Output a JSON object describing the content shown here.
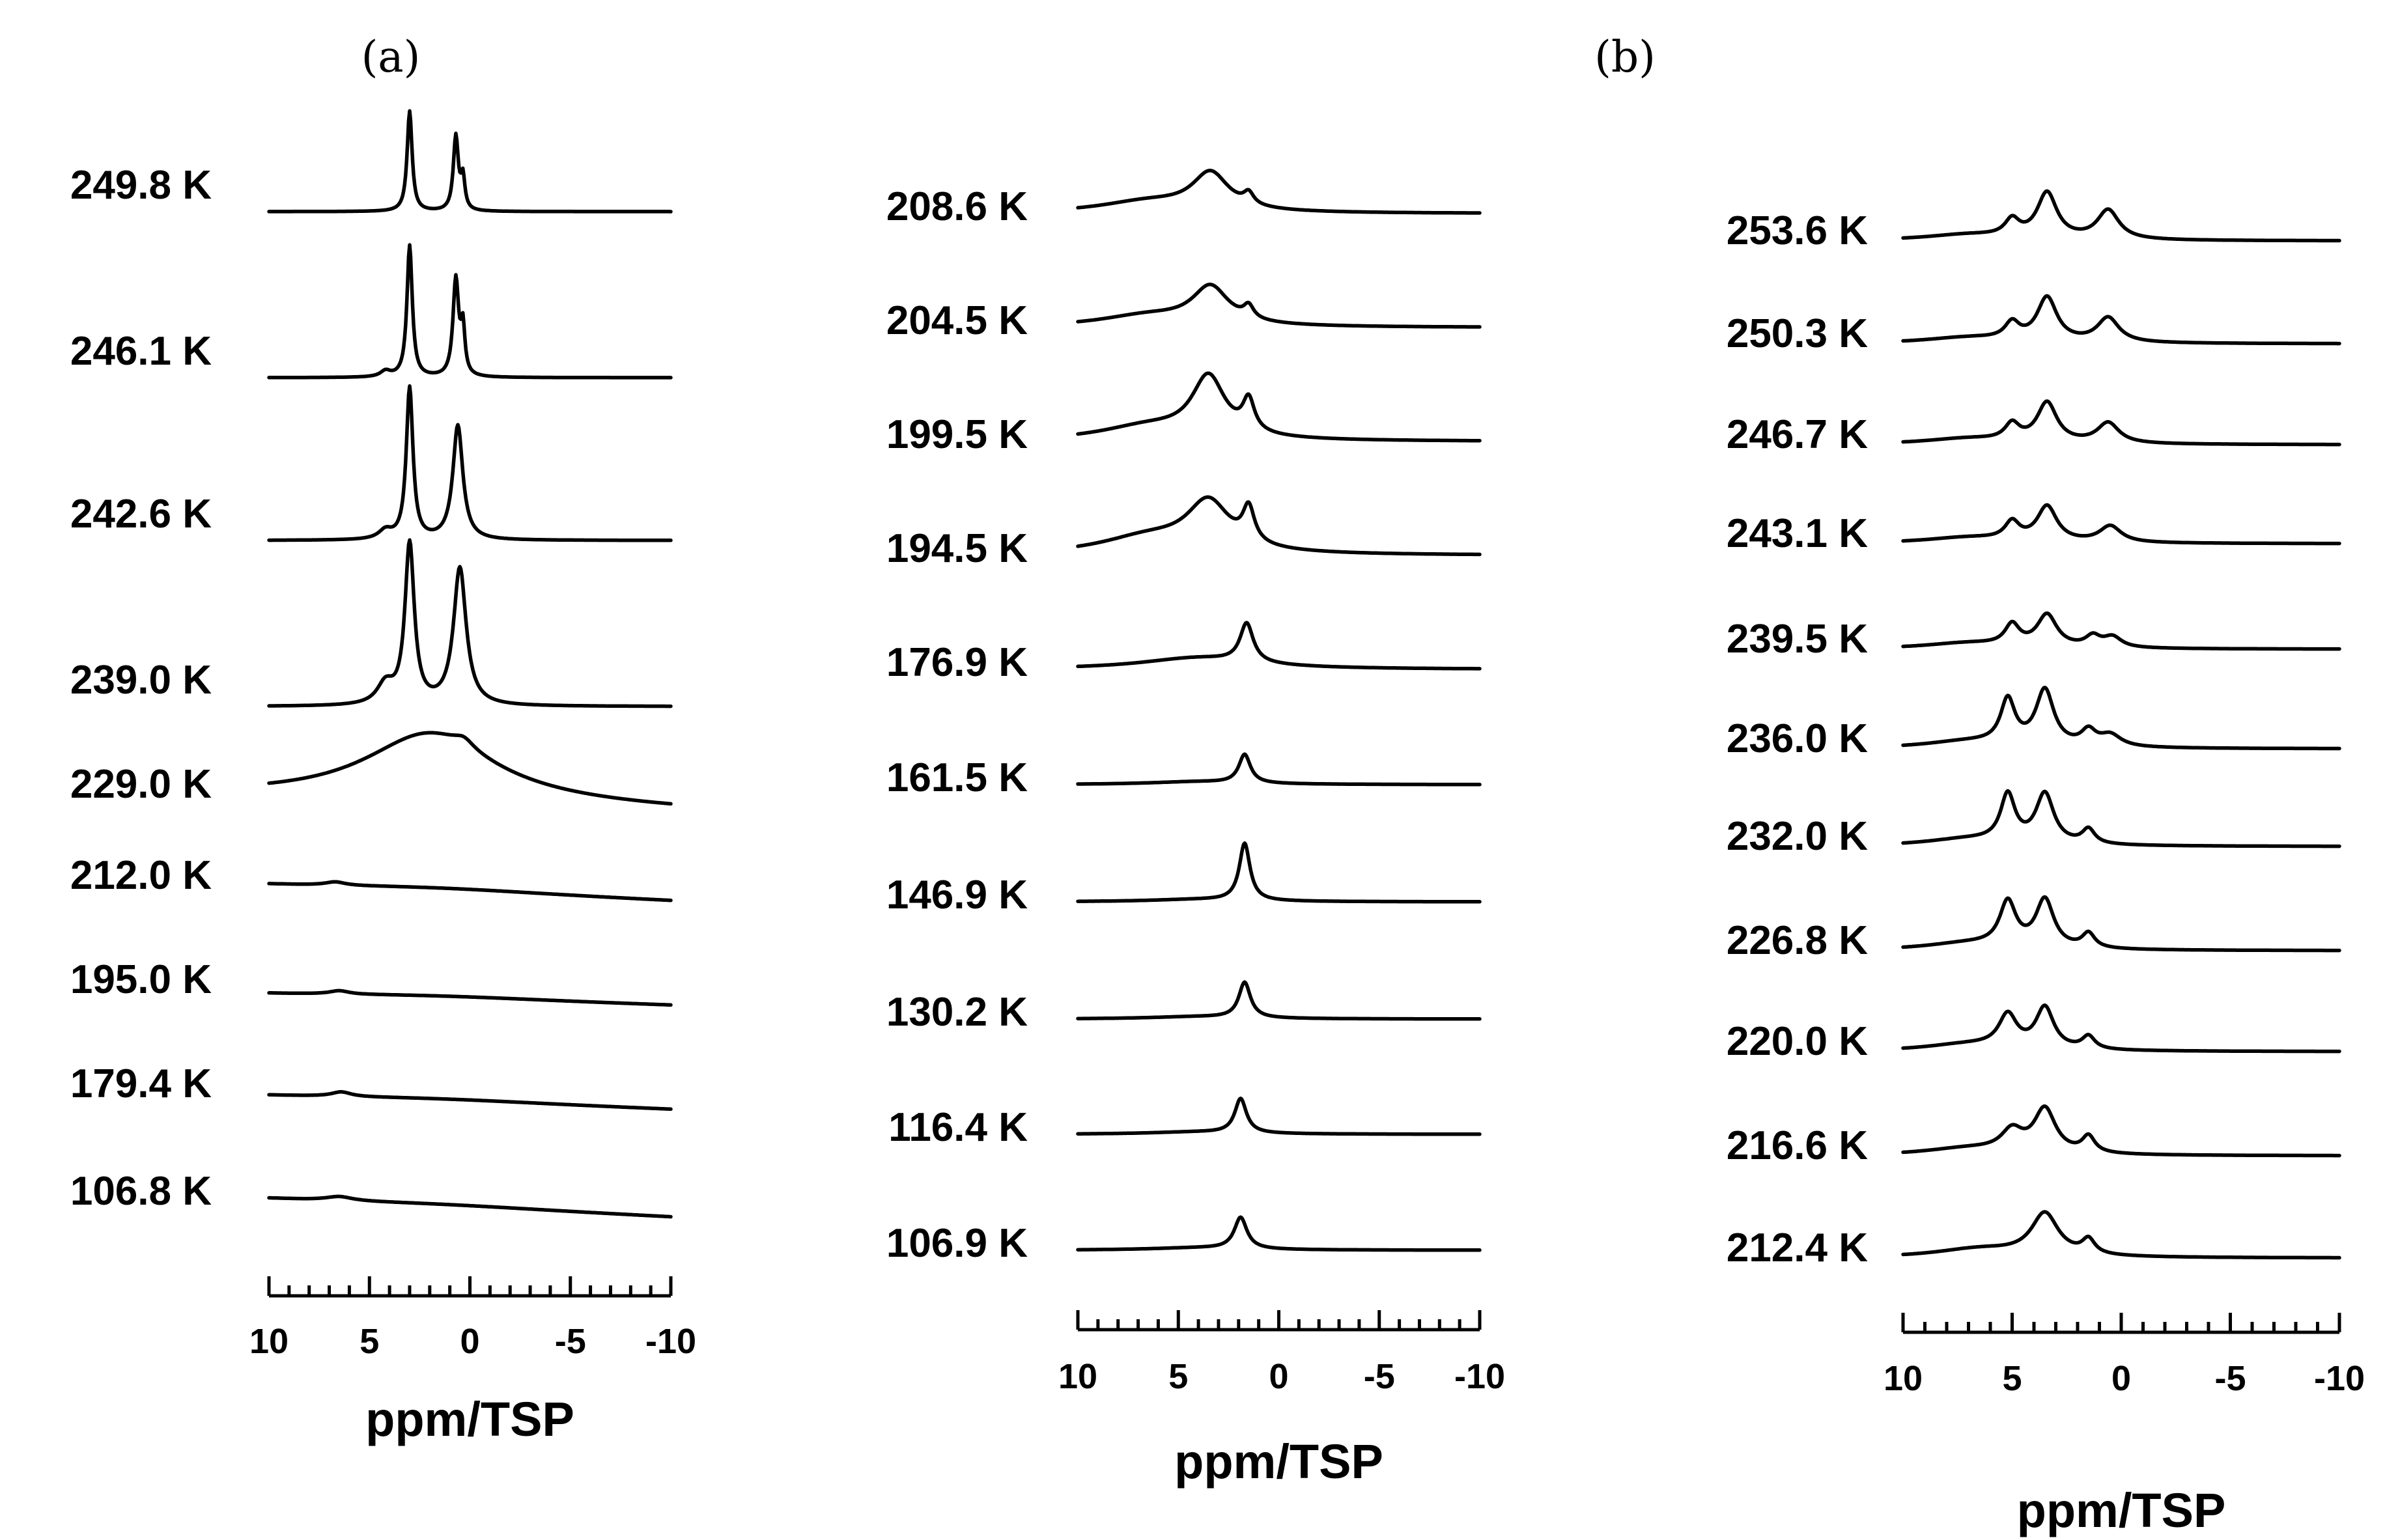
{
  "chart_data": [
    {
      "type": "line",
      "panel_label": "(a)",
      "title": "",
      "xlabel": "ppm/TSP",
      "ylabel": "",
      "xlim": [
        10,
        -10
      ],
      "x_ticks": [
        10,
        5,
        0,
        -5,
        -10
      ],
      "x_tick_labels": [
        "10",
        "5",
        "0",
        "-5",
        "-10"
      ],
      "grid": false,
      "legend": "none",
      "series": [
        {
          "name": "249.8 K",
          "peaks": [
            {
              "ppm": 3.0,
              "height": 1.75,
              "width": 0.15
            },
            {
              "ppm": 0.7,
              "height": 1.3,
              "width": 0.15
            },
            {
              "ppm": 0.35,
              "height": 0.55,
              "width": 0.12
            }
          ]
        },
        {
          "name": "246.1 K",
          "peaks": [
            {
              "ppm": 3.0,
              "height": 2.3,
              "width": 0.16
            },
            {
              "ppm": 0.7,
              "height": 1.7,
              "width": 0.17
            },
            {
              "ppm": 0.35,
              "height": 0.8,
              "width": 0.12
            },
            {
              "ppm": 4.2,
              "height": 0.1,
              "width": 0.3
            }
          ]
        },
        {
          "name": "242.6 K",
          "peaks": [
            {
              "ppm": 3.0,
              "height": 2.65,
              "width": 0.2
            },
            {
              "ppm": 0.6,
              "height": 2.0,
              "width": 0.3
            },
            {
              "ppm": 4.2,
              "height": 0.15,
              "width": 0.4
            }
          ]
        },
        {
          "name": "239.0 K",
          "peaks": [
            {
              "ppm": 3.0,
              "height": 2.8,
              "width": 0.28
            },
            {
              "ppm": 0.5,
              "height": 2.4,
              "width": 0.38
            },
            {
              "ppm": 4.2,
              "height": 0.35,
              "width": 0.5
            }
          ]
        },
        {
          "name": "229.0 K",
          "peaks": [
            {
              "ppm": 2.0,
              "height": 1.2,
              "width": 4.0
            },
            {
              "ppm": 0.3,
              "height": 0.15,
              "width": 0.6
            }
          ],
          "tilt": 0.012
        },
        {
          "name": "212.0 K",
          "peaks": [
            {
              "ppm": 1.5,
              "height": 0.08,
              "width": 8.0
            },
            {
              "ppm": 6.7,
              "height": 0.06,
              "width": 0.6
            }
          ],
          "tilt": 0.014
        },
        {
          "name": "195.0 K",
          "peaks": [
            {
              "ppm": 1.5,
              "height": 0.06,
              "width": 8.0
            },
            {
              "ppm": 6.5,
              "height": 0.06,
              "width": 0.6
            }
          ],
          "tilt": 0.01
        },
        {
          "name": "179.4 K",
          "peaks": [
            {
              "ppm": 1.5,
              "height": 0.06,
              "width": 8.0
            },
            {
              "ppm": 6.4,
              "height": 0.08,
              "width": 0.6
            }
          ],
          "tilt": 0.012
        },
        {
          "name": "106.8 K",
          "peaks": [
            {
              "ppm": 1.5,
              "height": 0.05,
              "width": 8.0
            },
            {
              "ppm": 6.5,
              "height": 0.07,
              "width": 0.8
            }
          ],
          "tilt": 0.016
        }
      ]
    },
    {
      "type": "line",
      "panel_label": "",
      "title": "",
      "xlabel": "ppm/TSP",
      "ylabel": "",
      "xlim": [
        10,
        -10
      ],
      "x_ticks": [
        10,
        5,
        0,
        -5,
        -10
      ],
      "x_tick_labels": [
        "10",
        "5",
        "0",
        "-5",
        "-10"
      ],
      "grid": false,
      "legend": "none",
      "series": [
        {
          "name": "208.6 K",
          "peaks": [
            {
              "ppm": 3.4,
              "height": 0.65,
              "width": 1.1
            },
            {
              "ppm": 1.5,
              "height": 0.2,
              "width": 0.3
            },
            {
              "ppm": 6.5,
              "height": 0.2,
              "width": 3.0
            }
          ]
        },
        {
          "name": "204.5 K",
          "peaks": [
            {
              "ppm": 3.4,
              "height": 0.65,
              "width": 1.1
            },
            {
              "ppm": 1.5,
              "height": 0.22,
              "width": 0.3
            },
            {
              "ppm": 6.5,
              "height": 0.2,
              "width": 3.0
            }
          ]
        },
        {
          "name": "199.5 K",
          "peaks": [
            {
              "ppm": 3.5,
              "height": 1.05,
              "width": 1.0
            },
            {
              "ppm": 1.5,
              "height": 0.55,
              "width": 0.35
            },
            {
              "ppm": 6.5,
              "height": 0.25,
              "width": 3.0
            }
          ]
        },
        {
          "name": "194.5 K",
          "peaks": [
            {
              "ppm": 3.5,
              "height": 0.85,
              "width": 1.3
            },
            {
              "ppm": 1.5,
              "height": 0.6,
              "width": 0.35
            },
            {
              "ppm": 6.5,
              "height": 0.3,
              "width": 3.0
            }
          ]
        },
        {
          "name": "176.9 K",
          "peaks": [
            {
              "ppm": 1.6,
              "height": 0.68,
              "width": 0.4
            },
            {
              "ppm": 4.0,
              "height": 0.2,
              "width": 3.5
            }
          ]
        },
        {
          "name": "161.5 K",
          "peaks": [
            {
              "ppm": 1.7,
              "height": 0.5,
              "width": 0.35
            },
            {
              "ppm": 4.0,
              "height": 0.05,
              "width": 3.0
            }
          ]
        },
        {
          "name": "146.9 K",
          "peaks": [
            {
              "ppm": 1.7,
              "height": 1.0,
              "width": 0.32
            },
            {
              "ppm": 4.0,
              "height": 0.04,
              "width": 3.0
            }
          ]
        },
        {
          "name": "130.2 K",
          "peaks": [
            {
              "ppm": 1.7,
              "height": 0.62,
              "width": 0.35
            },
            {
              "ppm": 4.0,
              "height": 0.04,
              "width": 3.0
            }
          ]
        },
        {
          "name": "116.4 K",
          "peaks": [
            {
              "ppm": 1.9,
              "height": 0.6,
              "width": 0.35
            },
            {
              "ppm": 4.0,
              "height": 0.04,
              "width": 3.0
            }
          ]
        },
        {
          "name": "106.9 K",
          "peaks": [
            {
              "ppm": 1.9,
              "height": 0.55,
              "width": 0.38
            },
            {
              "ppm": 4.0,
              "height": 0.04,
              "width": 3.0
            }
          ]
        }
      ]
    },
    {
      "type": "line",
      "panel_label": "(b)",
      "title": "",
      "xlabel": "ppm/TSP",
      "ylabel": "",
      "xlim": [
        10,
        -10
      ],
      "x_ticks": [
        10,
        5,
        0,
        -5,
        -10
      ],
      "x_tick_labels": [
        "10",
        "5",
        "0",
        "-5",
        "-10"
      ],
      "grid": false,
      "legend": "none",
      "series": [
        {
          "name": "253.6 K",
          "peaks": [
            {
              "ppm": 5.0,
              "height": 0.28,
              "width": 0.4
            },
            {
              "ppm": 3.4,
              "height": 0.78,
              "width": 0.55
            },
            {
              "ppm": 0.6,
              "height": 0.5,
              "width": 0.6
            },
            {
              "ppm": 7.0,
              "height": 0.1,
              "width": 2.5
            }
          ]
        },
        {
          "name": "250.3 K",
          "peaks": [
            {
              "ppm": 5.0,
              "height": 0.28,
              "width": 0.4
            },
            {
              "ppm": 3.4,
              "height": 0.75,
              "width": 0.55
            },
            {
              "ppm": 0.6,
              "height": 0.42,
              "width": 0.6
            },
            {
              "ppm": 7.0,
              "height": 0.1,
              "width": 2.5
            }
          ]
        },
        {
          "name": "246.7 K",
          "peaks": [
            {
              "ppm": 5.0,
              "height": 0.28,
              "width": 0.4
            },
            {
              "ppm": 3.4,
              "height": 0.68,
              "width": 0.55
            },
            {
              "ppm": 0.6,
              "height": 0.35,
              "width": 0.6
            },
            {
              "ppm": 7.0,
              "height": 0.1,
              "width": 2.5
            }
          ]
        },
        {
          "name": "243.1 K",
          "peaks": [
            {
              "ppm": 5.0,
              "height": 0.3,
              "width": 0.4
            },
            {
              "ppm": 3.4,
              "height": 0.6,
              "width": 0.55
            },
            {
              "ppm": 0.5,
              "height": 0.28,
              "width": 0.6
            },
            {
              "ppm": 7.0,
              "height": 0.1,
              "width": 2.5
            }
          ]
        },
        {
          "name": "239.5 K",
          "peaks": [
            {
              "ppm": 5.0,
              "height": 0.35,
              "width": 0.4
            },
            {
              "ppm": 3.4,
              "height": 0.55,
              "width": 0.55
            },
            {
              "ppm": 1.3,
              "height": 0.18,
              "width": 0.4
            },
            {
              "ppm": 0.4,
              "height": 0.18,
              "width": 0.5
            },
            {
              "ppm": 7.0,
              "height": 0.1,
              "width": 2.5
            }
          ]
        },
        {
          "name": "236.0 K",
          "peaks": [
            {
              "ppm": 5.2,
              "height": 0.75,
              "width": 0.4
            },
            {
              "ppm": 3.5,
              "height": 0.95,
              "width": 0.5
            },
            {
              "ppm": 1.5,
              "height": 0.25,
              "width": 0.4
            },
            {
              "ppm": 0.5,
              "height": 0.2,
              "width": 0.6
            },
            {
              "ppm": 7.0,
              "height": 0.12,
              "width": 2.5
            }
          ]
        },
        {
          "name": "232.0 K",
          "peaks": [
            {
              "ppm": 5.2,
              "height": 0.8,
              "width": 0.4
            },
            {
              "ppm": 3.5,
              "height": 0.85,
              "width": 0.5
            },
            {
              "ppm": 1.5,
              "height": 0.25,
              "width": 0.35
            },
            {
              "ppm": 7.0,
              "height": 0.12,
              "width": 2.5
            }
          ]
        },
        {
          "name": "226.8 K",
          "peaks": [
            {
              "ppm": 5.2,
              "height": 0.75,
              "width": 0.45
            },
            {
              "ppm": 3.5,
              "height": 0.82,
              "width": 0.5
            },
            {
              "ppm": 1.5,
              "height": 0.25,
              "width": 0.35
            },
            {
              "ppm": 7.0,
              "height": 0.12,
              "width": 2.5
            }
          ]
        },
        {
          "name": "220.0 K",
          "peaks": [
            {
              "ppm": 5.2,
              "height": 0.55,
              "width": 0.5
            },
            {
              "ppm": 3.5,
              "height": 0.7,
              "width": 0.5
            },
            {
              "ppm": 1.5,
              "height": 0.22,
              "width": 0.35
            },
            {
              "ppm": 7.0,
              "height": 0.12,
              "width": 2.5
            }
          ]
        },
        {
          "name": "216.6 K",
          "peaks": [
            {
              "ppm": 5.0,
              "height": 0.35,
              "width": 0.6
            },
            {
              "ppm": 3.5,
              "height": 0.75,
              "width": 0.6
            },
            {
              "ppm": 1.5,
              "height": 0.28,
              "width": 0.35
            },
            {
              "ppm": 7.0,
              "height": 0.12,
              "width": 2.5
            }
          ]
        },
        {
          "name": "212.4 K",
          "peaks": [
            {
              "ppm": 3.5,
              "height": 0.72,
              "width": 0.75
            },
            {
              "ppm": 1.5,
              "height": 0.25,
              "width": 0.35
            },
            {
              "ppm": 6.5,
              "height": 0.15,
              "width": 2.5
            }
          ]
        }
      ]
    }
  ]
}
